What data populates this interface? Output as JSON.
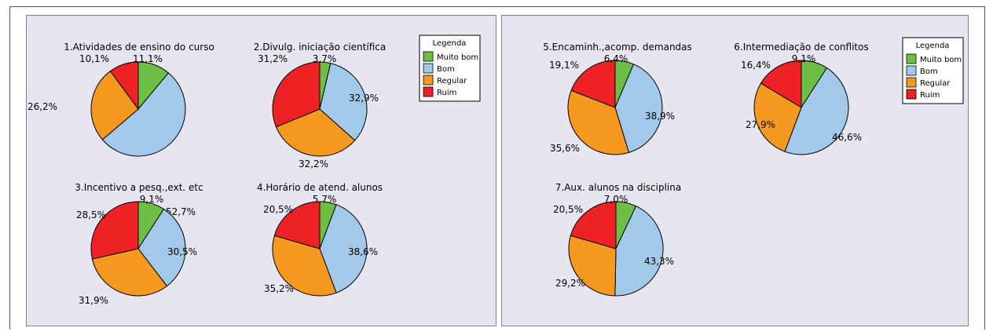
{
  "colors": {
    "Muito bom": "#6cbe45",
    "Bom": "#a3c9ea",
    "Regular": "#f5991f",
    "Ruim": "#ee2224"
  },
  "chart_data": [
    {
      "panel": "left",
      "type": "pie",
      "legend": {
        "title": "Legenda",
        "entries": [
          "Muito bom",
          "Bom",
          "Regular",
          "Ruim"
        ],
        "placement": "top-right"
      },
      "pies": [
        {
          "title": "1.Atividades de ensino do curso",
          "categories": [
            "Muito bom",
            "Bom",
            "Regular",
            "Ruim"
          ],
          "values": [
            11.1,
            52.7,
            26.2,
            10.1
          ],
          "labels": [
            "11,1%",
            "52,7%",
            "26,2%",
            "10,1%"
          ]
        },
        {
          "title": "2.Divulg. iniciação científica",
          "categories": [
            "Muito bom",
            "Bom",
            "Regular",
            "Ruim"
          ],
          "values": [
            3.7,
            32.9,
            32.2,
            31.2
          ],
          "labels": [
            "3,7%",
            "32,9%",
            "32,2%",
            "31,2%"
          ]
        },
        {
          "title": "3.Incentivo a pesq.,ext. etc",
          "categories": [
            "Muito bom",
            "Bom",
            "Regular",
            "Ruim"
          ],
          "values": [
            9.1,
            30.5,
            31.9,
            28.5
          ],
          "labels": [
            "9,1%",
            "30,5%",
            "31,9%",
            "28,5%"
          ]
        },
        {
          "title": "4.Horário de atend. alunos",
          "categories": [
            "Muito bom",
            "Bom",
            "Regular",
            "Ruim"
          ],
          "values": [
            5.7,
            38.6,
            35.2,
            20.5
          ],
          "labels": [
            "5,7%",
            "38,6%",
            "35,2%",
            "20,5%"
          ]
        }
      ]
    },
    {
      "panel": "right",
      "type": "pie",
      "legend": {
        "title": "Legenda",
        "entries": [
          "Muito bom",
          "Bom",
          "Regular",
          "Ruim"
        ],
        "placement": "top-right"
      },
      "pies": [
        {
          "title": "5.Encaminh.,acomp. demandas",
          "categories": [
            "Muito bom",
            "Bom",
            "Regular",
            "Ruim"
          ],
          "values": [
            6.4,
            38.9,
            35.6,
            19.1
          ],
          "labels": [
            "6,4%",
            "38,9%",
            "35,6%",
            "19,1%"
          ]
        },
        {
          "title": "6.Intermediação de conflitos",
          "categories": [
            "Muito bom",
            "Bom",
            "Regular",
            "Ruim"
          ],
          "values": [
            9.1,
            46.6,
            27.9,
            16.4
          ],
          "labels": [
            "9,1%",
            "46,6%",
            "27,9%",
            "16,4%"
          ]
        },
        {
          "title": "7.Aux. alunos na disciplina",
          "categories": [
            "Muito bom",
            "Bom",
            "Regular",
            "Ruim"
          ],
          "values": [
            7.0,
            43.3,
            29.2,
            20.5
          ],
          "labels": [
            "7,0%",
            "43,3%",
            "29,2%",
            "20,5%"
          ]
        }
      ]
    }
  ]
}
